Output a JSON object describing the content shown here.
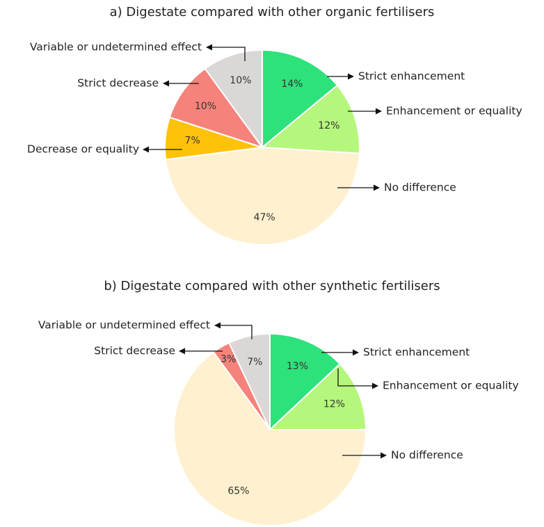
{
  "chart_data": [
    {
      "type": "pie",
      "title": "a) Digestate compared with other organic fertilisers",
      "categories": [
        "Strict enhancement",
        "Enhancement or equality",
        "No difference",
        "Decrease or equality",
        "Strict decrease",
        "Variable or undetermined effect"
      ],
      "values": [
        14,
        12,
        47,
        7,
        10,
        10
      ],
      "value_labels": [
        "14%",
        "12%",
        "47%",
        "7%",
        "10%",
        "10%"
      ],
      "colors": [
        "#2ee27b",
        "#b5f77c",
        "#fff0cf",
        "#ffc20a",
        "#f5837b",
        "#dbd7d7"
      ]
    },
    {
      "type": "pie",
      "title": "b) Digestate compared with other synthetic fertilisers",
      "categories": [
        "Strict enhancement",
        "Enhancement or equality",
        "No difference",
        "Strict decrease",
        "Variable or undetermined effect"
      ],
      "values": [
        13,
        12,
        65,
        3,
        7
      ],
      "value_labels": [
        "13%",
        "12%",
        "65%",
        "3%",
        "7%"
      ],
      "colors": [
        "#2ee27b",
        "#b5f77c",
        "#fff0cf",
        "#f5837b",
        "#dbd7d7"
      ]
    }
  ]
}
